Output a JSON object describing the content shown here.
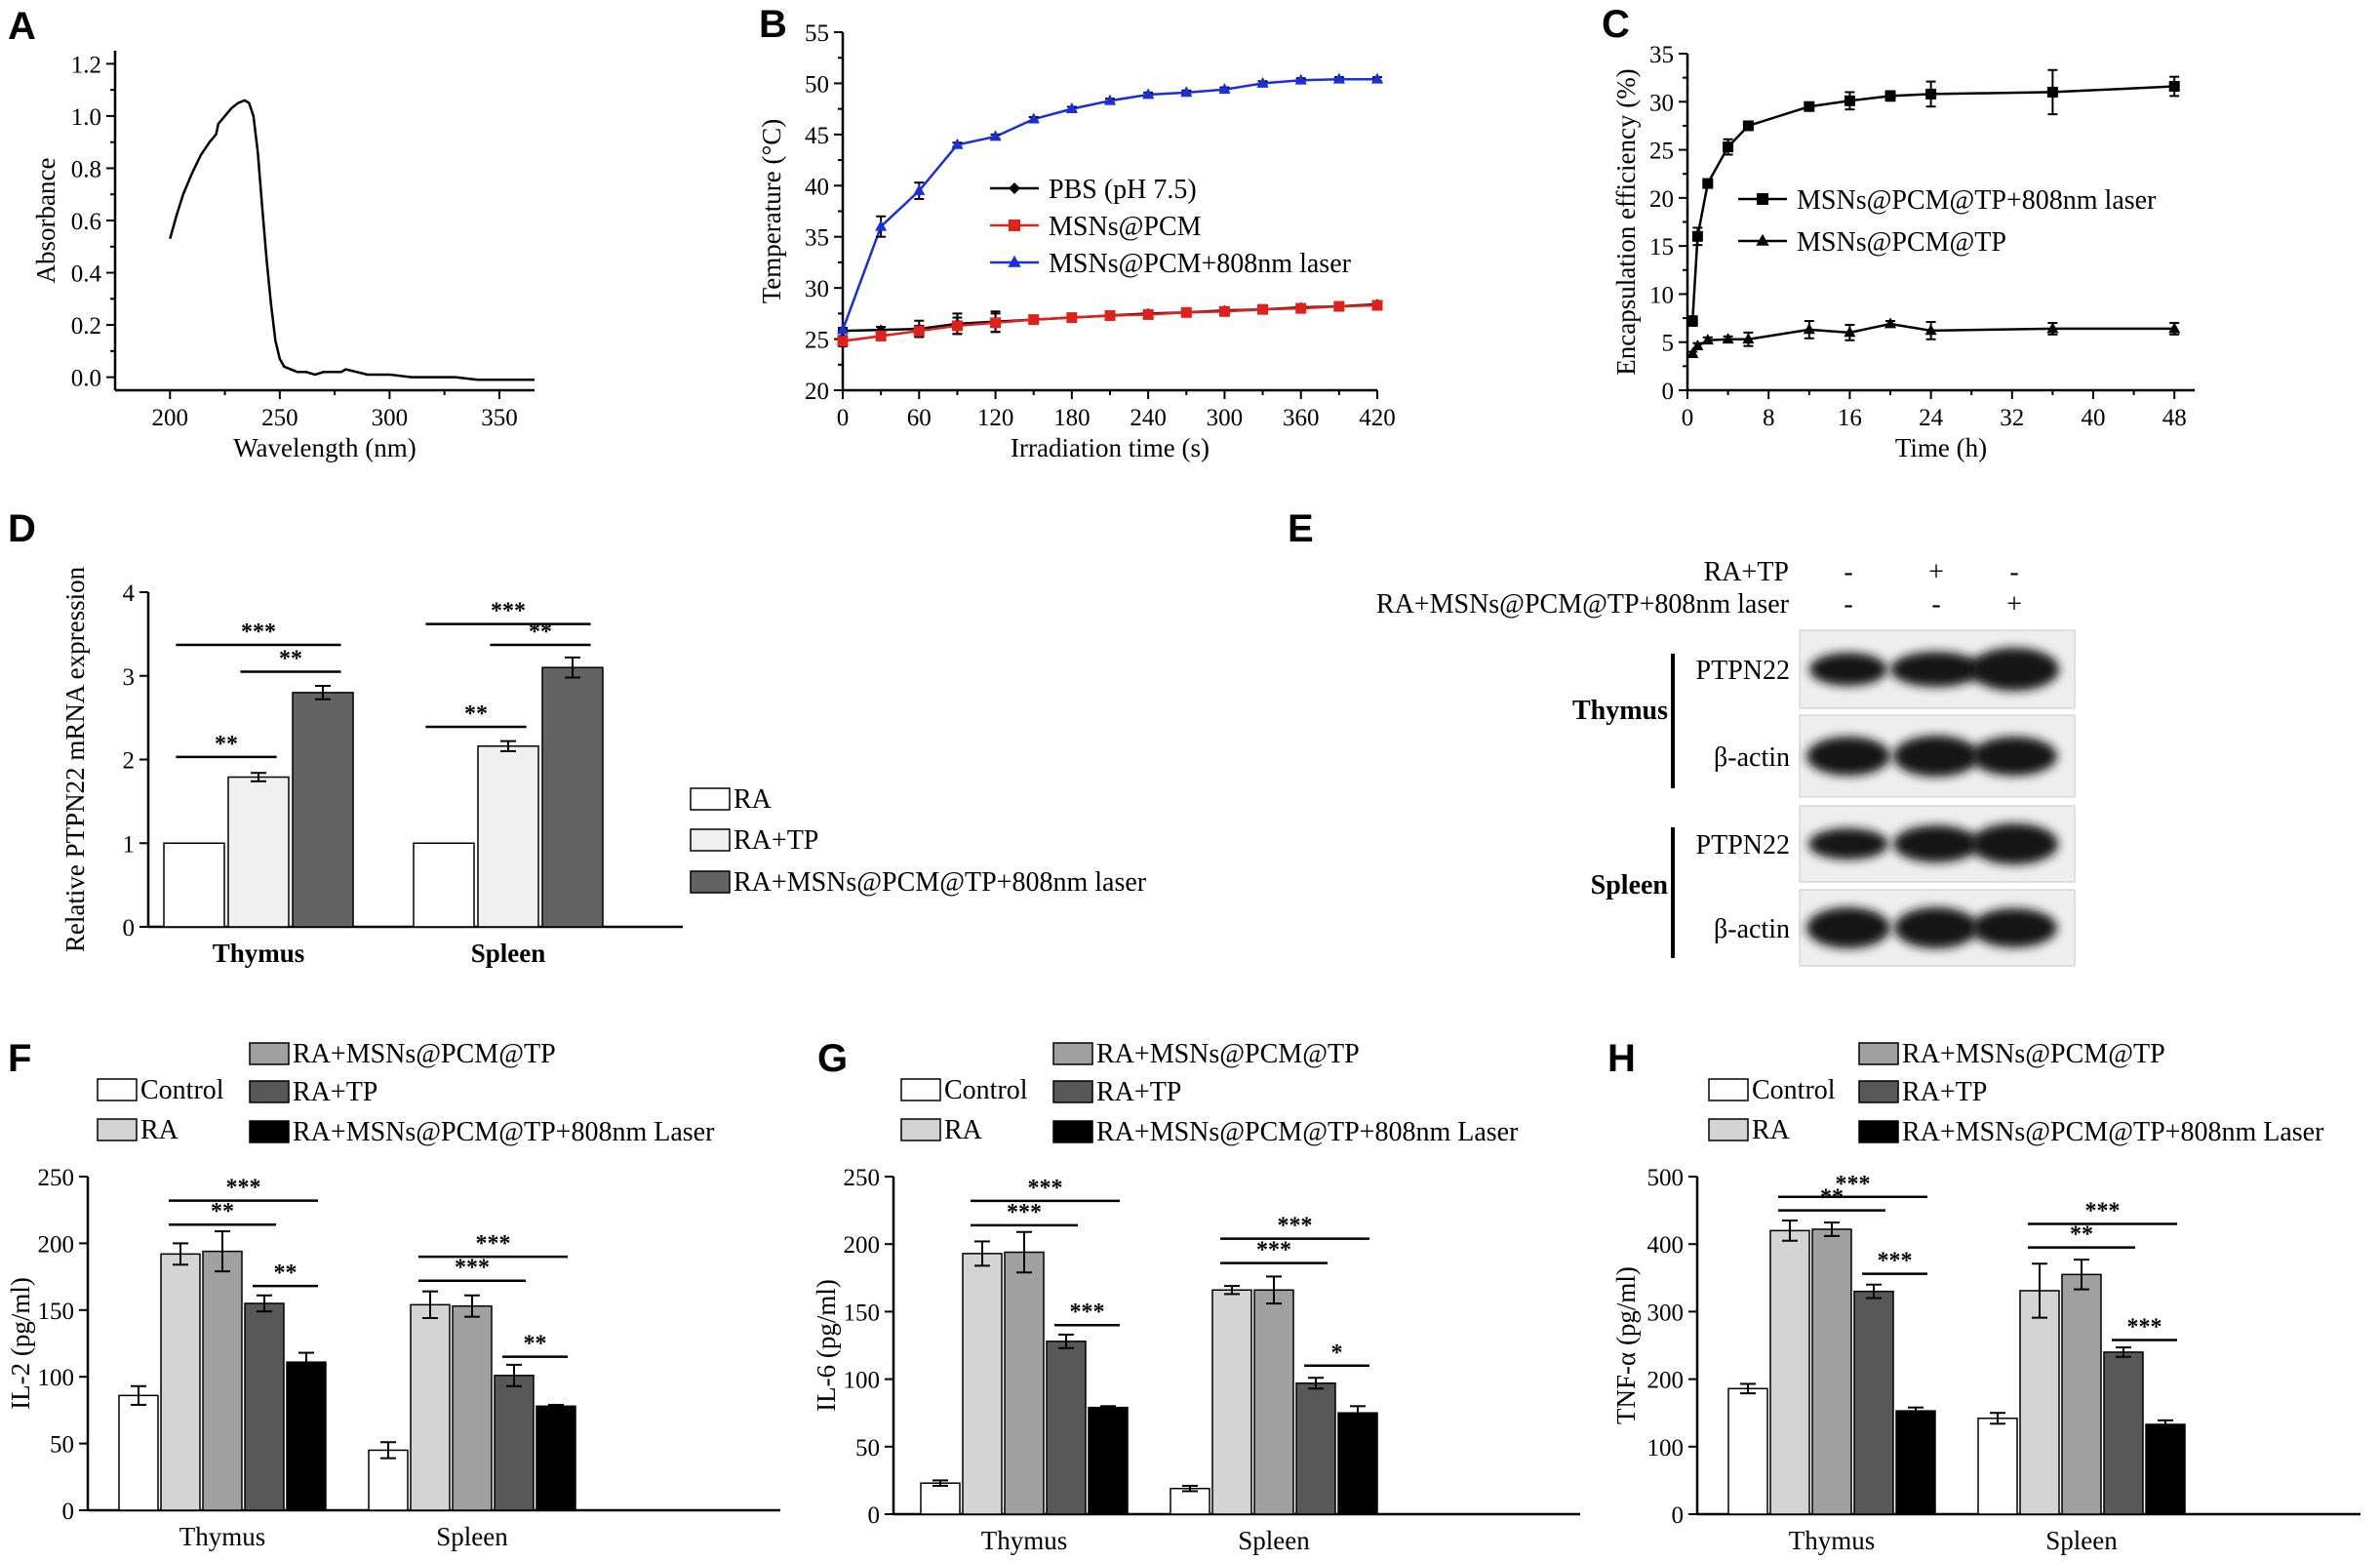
{
  "chart_data": [
    {
      "id": "A",
      "type": "line",
      "panel_label": "A",
      "xlabel": "Wavelength (nm)",
      "ylabel": "Absorbance",
      "xlim": [
        175,
        366
      ],
      "ylim": [
        -0.05,
        1.25
      ],
      "xticks": [
        200,
        250,
        300,
        350
      ],
      "yticks": [
        0.0,
        0.2,
        0.4,
        0.6,
        0.8,
        1.0,
        1.2
      ],
      "ytick_labels": [
        "0.0",
        "0.2",
        "0.4",
        "0.6",
        "0.8",
        "1.0",
        "1.2"
      ],
      "series": [
        {
          "name": "spectrum",
          "color": "#000000",
          "x": [
            200,
            203,
            206,
            210,
            214,
            218,
            221,
            222,
            225,
            228,
            231,
            234,
            236,
            238,
            240,
            242,
            244,
            246,
            248,
            250,
            252,
            255,
            258,
            262,
            266,
            270,
            274,
            278,
            280,
            285,
            290,
            300,
            310,
            320,
            330,
            340,
            350,
            360,
            366
          ],
          "y": [
            0.53,
            0.62,
            0.7,
            0.78,
            0.85,
            0.9,
            0.93,
            0.97,
            1.0,
            1.03,
            1.05,
            1.06,
            1.05,
            1.0,
            0.86,
            0.65,
            0.45,
            0.28,
            0.14,
            0.07,
            0.04,
            0.03,
            0.02,
            0.02,
            0.01,
            0.02,
            0.02,
            0.02,
            0.03,
            0.02,
            0.01,
            0.01,
            0.0,
            0.0,
            0.0,
            -0.01,
            -0.01,
            -0.01,
            -0.01
          ]
        }
      ]
    },
    {
      "id": "B",
      "type": "line",
      "panel_label": "B",
      "xlabel": "Irradiation time (s)",
      "ylabel": "Temperature (°C)",
      "xlim": [
        0,
        420
      ],
      "ylim": [
        20,
        55
      ],
      "xticks": [
        0,
        60,
        120,
        180,
        240,
        300,
        360,
        420
      ],
      "yticks": [
        20,
        25,
        30,
        35,
        40,
        45,
        50,
        55
      ],
      "legend": [
        "PBS (pH 7.5)",
        "MSNs@PCM",
        "MSNs@PCM+808nm laser"
      ],
      "series": [
        {
          "name": "PBS (pH 7.5)",
          "color": "#000000",
          "marker": "diamond",
          "x": [
            0,
            30,
            60,
            90,
            120,
            150,
            180,
            210,
            240,
            270,
            300,
            330,
            360,
            390,
            420
          ],
          "y": [
            25.8,
            25.9,
            26.0,
            26.5,
            26.7,
            26.9,
            27.1,
            27.3,
            27.5,
            27.6,
            27.8,
            27.9,
            28.1,
            28.2,
            28.4
          ],
          "err": [
            0.2,
            0.3,
            0.8,
            1.0,
            1.0,
            0.3,
            0.3,
            0.3,
            0.3,
            0.3,
            0.3,
            0.3,
            0.3,
            0.3,
            0.3
          ]
        },
        {
          "name": "MSNs@PCM",
          "color": "#e0201a",
          "marker": "square",
          "x": [
            0,
            30,
            60,
            90,
            120,
            150,
            180,
            210,
            240,
            270,
            300,
            330,
            360,
            390,
            420
          ],
          "y": [
            24.8,
            25.3,
            25.8,
            26.3,
            26.6,
            26.9,
            27.1,
            27.3,
            27.4,
            27.6,
            27.7,
            27.9,
            28.0,
            28.2,
            28.3
          ],
          "err": [
            0.5,
            0.3,
            0.5,
            0.8,
            0.9,
            0.3,
            0.3,
            0.3,
            0.3,
            0.3,
            0.3,
            0.3,
            0.3,
            0.3,
            0.3
          ]
        },
        {
          "name": "MSNs@PCM+808nm laser",
          "color": "#1a2fdc",
          "marker": "triangle",
          "x": [
            0,
            30,
            60,
            90,
            120,
            150,
            180,
            210,
            240,
            270,
            300,
            330,
            360,
            390,
            420
          ],
          "y": [
            25.9,
            36.0,
            39.5,
            44.0,
            44.8,
            46.5,
            47.5,
            48.3,
            48.9,
            49.1,
            49.4,
            50.0,
            50.3,
            50.4,
            50.4
          ],
          "err": [
            0.2,
            1.0,
            0.8,
            0.2,
            0.2,
            0.2,
            0.2,
            0.2,
            0.2,
            0.2,
            0.2,
            0.2,
            0.2,
            0.2,
            0.2
          ]
        }
      ]
    },
    {
      "id": "C",
      "type": "line",
      "panel_label": "C",
      "xlabel": "Time (h)",
      "ylabel": "Encapsulation efficiency (%)",
      "xlim": [
        0,
        50
      ],
      "ylim": [
        0,
        35
      ],
      "xticks": [
        0,
        8,
        16,
        24,
        32,
        40,
        48
      ],
      "yticks": [
        0,
        5,
        10,
        15,
        20,
        25,
        30,
        35
      ],
      "legend": [
        "MSNs@PCM@TP+808nm laser",
        "MSNs@PCM@TP"
      ],
      "series": [
        {
          "name": "MSNs@PCM@TP+808nm laser",
          "color": "#000000",
          "marker": "square",
          "x": [
            0.5,
            1,
            2,
            4,
            6,
            12,
            16,
            20,
            24,
            36,
            48
          ],
          "y": [
            7.2,
            16.0,
            21.5,
            25.3,
            27.5,
            29.5,
            30.1,
            30.6,
            30.8,
            31.0,
            31.6
          ],
          "err": [
            0.5,
            0.9,
            0.4,
            0.8,
            0.4,
            0.4,
            0.9,
            0.5,
            1.3,
            2.3,
            1.0
          ]
        },
        {
          "name": "MSNs@PCM@TP",
          "color": "#000000",
          "marker": "triangle",
          "x": [
            0.5,
            1,
            2,
            4,
            6,
            12,
            16,
            20,
            24,
            36,
            48
          ],
          "y": [
            3.8,
            4.6,
            5.2,
            5.3,
            5.3,
            6.3,
            6.0,
            6.9,
            6.2,
            6.4,
            6.4
          ],
          "err": [
            0.2,
            0.3,
            0.3,
            0.3,
            0.7,
            0.9,
            0.8,
            0.3,
            0.9,
            0.6,
            0.6
          ]
        }
      ]
    },
    {
      "id": "D",
      "type": "bar",
      "panel_label": "D",
      "xlabel": "",
      "ylabel": "Relative PTPN22 mRNA expression",
      "ylim": [
        0,
        4
      ],
      "yticks": [
        0,
        1,
        2,
        3,
        4
      ],
      "categories": [
        "Thymus",
        "Spleen"
      ],
      "series": [
        {
          "name": "RA",
          "color": "#ffffff",
          "values": [
            1.0,
            1.0
          ],
          "err": [
            0,
            0
          ]
        },
        {
          "name": "RA+TP",
          "color": "#f0f0f0",
          "values": [
            1.79,
            2.16
          ],
          "err": [
            0.05,
            0.06
          ]
        },
        {
          "name": "RA+MSNs@PCM@TP+808nm laser",
          "color": "#636363",
          "values": [
            2.8,
            3.1
          ],
          "err": [
            0.08,
            0.12
          ]
        }
      ],
      "significance": [
        {
          "label": "**",
          "category": 0,
          "from": 0,
          "to": 1,
          "y": 2.03
        },
        {
          "label": "**",
          "category": 0,
          "from": 1,
          "to": 2,
          "y": 3.05
        },
        {
          "label": "***",
          "category": 0,
          "from": 0,
          "to": 2,
          "y": 3.37
        },
        {
          "label": "**",
          "category": 1,
          "from": 0,
          "to": 1,
          "y": 2.39
        },
        {
          "label": "**",
          "category": 1,
          "from": 1,
          "to": 2,
          "y": 3.37
        },
        {
          "label": "***",
          "category": 1,
          "from": 0,
          "to": 2,
          "y": 3.62
        }
      ]
    },
    {
      "id": "F",
      "type": "bar",
      "panel_label": "F",
      "ylabel": "IL-2 (pg/ml)",
      "ylim": [
        0,
        250
      ],
      "yticks": [
        0,
        50,
        100,
        150,
        200,
        250
      ],
      "categories": [
        "Thymus",
        "Spleen"
      ],
      "series": [
        {
          "name": "Control",
          "color": "#ffffff",
          "values": [
            86,
            45
          ],
          "err": [
            7,
            6
          ]
        },
        {
          "name": "RA",
          "color": "#d4d4d4",
          "values": [
            192,
            154
          ],
          "err": [
            8,
            10
          ]
        },
        {
          "name": "RA+MSNs@PCM@TP",
          "color": "#a0a0a0",
          "values": [
            194,
            153
          ],
          "err": [
            15,
            8
          ]
        },
        {
          "name": "RA+TP",
          "color": "#585858",
          "values": [
            155,
            101
          ],
          "err": [
            6,
            8
          ]
        },
        {
          "name": "RA+MSNs@PCM@TP+808nm Laser",
          "color": "#000000",
          "values": [
            111,
            78
          ],
          "err": [
            7,
            1
          ]
        }
      ],
      "significance": [
        {
          "label": "***",
          "category": 0,
          "from": 1,
          "to": 4,
          "y": 232
        },
        {
          "label": "**",
          "category": 0,
          "from": 1,
          "to": 3,
          "y": 214
        },
        {
          "label": "**",
          "category": 0,
          "from": 3,
          "to": 4,
          "y": 168
        },
        {
          "label": "***",
          "category": 1,
          "from": 1,
          "to": 4,
          "y": 190
        },
        {
          "label": "***",
          "category": 1,
          "from": 1,
          "to": 3,
          "y": 172
        },
        {
          "label": "**",
          "category": 1,
          "from": 3,
          "to": 4,
          "y": 115
        }
      ]
    },
    {
      "id": "G",
      "type": "bar",
      "panel_label": "G",
      "ylabel": "IL-6 (pg/ml)",
      "ylim": [
        0,
        250
      ],
      "yticks": [
        0,
        50,
        100,
        150,
        200,
        250
      ],
      "categories": [
        "Thymus",
        "Spleen"
      ],
      "series": [
        {
          "name": "Control",
          "color": "#ffffff",
          "values": [
            23,
            19
          ],
          "err": [
            2,
            2
          ]
        },
        {
          "name": "RA",
          "color": "#d4d4d4",
          "values": [
            193,
            166
          ],
          "err": [
            9,
            3
          ]
        },
        {
          "name": "RA+MSNs@PCM@TP",
          "color": "#a0a0a0",
          "values": [
            194,
            166
          ],
          "err": [
            15,
            10
          ]
        },
        {
          "name": "RA+TP",
          "color": "#585858",
          "values": [
            128,
            97
          ],
          "err": [
            5,
            4
          ]
        },
        {
          "name": "RA+MSNs@PCM@TP+808nm Laser",
          "color": "#000000",
          "values": [
            79,
            75
          ],
          "err": [
            1,
            5
          ]
        }
      ],
      "significance": [
        {
          "label": "***",
          "category": 0,
          "from": 1,
          "to": 4,
          "y": 232
        },
        {
          "label": "***",
          "category": 0,
          "from": 1,
          "to": 3,
          "y": 214
        },
        {
          "label": "***",
          "category": 0,
          "from": 3,
          "to": 4,
          "y": 140
        },
        {
          "label": "***",
          "category": 1,
          "from": 1,
          "to": 4,
          "y": 204
        },
        {
          "label": "***",
          "category": 1,
          "from": 1,
          "to": 3,
          "y": 186
        },
        {
          "label": "*",
          "category": 1,
          "from": 3,
          "to": 4,
          "y": 110
        }
      ]
    },
    {
      "id": "H",
      "type": "bar",
      "panel_label": "H",
      "ylabel": "TNF-α (pg/ml)",
      "ylim": [
        0,
        500
      ],
      "yticks": [
        0,
        100,
        200,
        300,
        400,
        500
      ],
      "categories": [
        "Thymus",
        "Spleen"
      ],
      "series": [
        {
          "name": "Control",
          "color": "#ffffff",
          "values": [
            186,
            142
          ],
          "err": [
            7,
            8
          ]
        },
        {
          "name": "RA",
          "color": "#d4d4d4",
          "values": [
            420,
            331
          ],
          "err": [
            15,
            40
          ]
        },
        {
          "name": "RA+MSNs@PCM@TP",
          "color": "#a0a0a0",
          "values": [
            422,
            355
          ],
          "err": [
            10,
            22
          ]
        },
        {
          "name": "RA+TP",
          "color": "#585858",
          "values": [
            330,
            240
          ],
          "err": [
            10,
            7
          ]
        },
        {
          "name": "RA+MSNs@PCM@TP+808nm Laser",
          "color": "#000000",
          "values": [
            153,
            133
          ],
          "err": [
            5,
            6
          ]
        }
      ],
      "significance": [
        {
          "label": "***",
          "category": 0,
          "from": 1,
          "to": 4,
          "y": 470
        },
        {
          "label": "**",
          "category": 0,
          "from": 1,
          "to": 3,
          "y": 450
        },
        {
          "label": "***",
          "category": 0,
          "from": 3,
          "to": 4,
          "y": 356
        },
        {
          "label": "***",
          "category": 1,
          "from": 1,
          "to": 4,
          "y": 430
        },
        {
          "label": "**",
          "category": 1,
          "from": 1,
          "to": 3,
          "y": 395
        },
        {
          "label": "***",
          "category": 1,
          "from": 3,
          "to": 4,
          "y": 258
        }
      ]
    }
  ],
  "panel_e": {
    "panel_label": "E",
    "row_labels": [
      "RA+TP",
      "RA+MSNs@PCM@TP+808nm laser"
    ],
    "row_values": [
      [
        "-",
        "+",
        "-"
      ],
      [
        "-",
        "-",
        "+"
      ]
    ],
    "tissues": [
      "Thymus",
      "Spleen"
    ],
    "proteins": [
      "PTPN22",
      "β-actin"
    ]
  }
}
